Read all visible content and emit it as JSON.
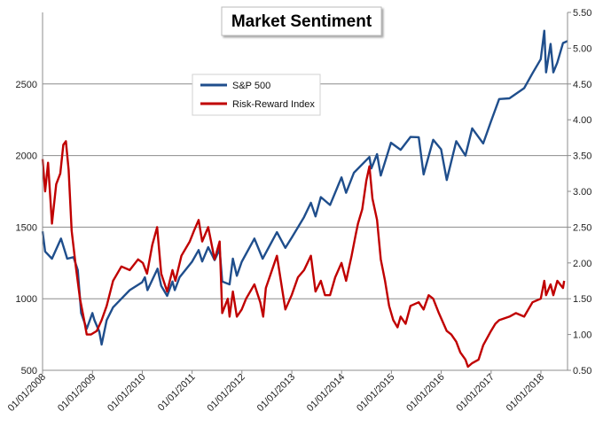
{
  "chart_data": {
    "type": "line",
    "title": "Market Sentiment",
    "legend_position": "top-left",
    "grid": "horizontal",
    "x_tick_labels": [
      "01/01/2008",
      "01/01/2009",
      "01/01/2010",
      "01/01/2011",
      "01/01/2012",
      "01/01/2013",
      "01/01/2014",
      "01/01/2015",
      "01/01/2016",
      "01/01/2017",
      "01/01/2018"
    ],
    "x_range": [
      "2008-01-01",
      "2018-07-15"
    ],
    "y_left": {
      "ylim": [
        500,
        3000
      ],
      "ticks": [
        "500",
        "1000",
        "1500",
        "2000",
        "2500"
      ],
      "tick_values": [
        500,
        1000,
        1500,
        2000,
        2500
      ]
    },
    "y_right": {
      "ylim": [
        0.5,
        5.5
      ],
      "ticks": [
        "0.50",
        "1.00",
        "1.50",
        "2.00",
        "2.50",
        "3.00",
        "3.50",
        "4.00",
        "4.50",
        "5.00",
        "5.50"
      ],
      "tick_values": [
        0.5,
        1.0,
        1.5,
        2.0,
        2.5,
        3.0,
        3.5,
        4.0,
        4.5,
        5.0,
        5.5
      ]
    },
    "series": [
      {
        "name": "S&P 500",
        "axis": "left",
        "color": "#1f4e8c",
        "points": [
          [
            "2008-01-01",
            1470
          ],
          [
            "2008-01-20",
            1330
          ],
          [
            "2008-03-10",
            1280
          ],
          [
            "2008-05-15",
            1420
          ],
          [
            "2008-06-30",
            1280
          ],
          [
            "2008-08-15",
            1290
          ],
          [
            "2008-09-15",
            1200
          ],
          [
            "2008-10-10",
            900
          ],
          [
            "2008-11-20",
            790
          ],
          [
            "2008-12-31",
            900
          ],
          [
            "2009-01-15",
            850
          ],
          [
            "2009-02-20",
            770
          ],
          [
            "2009-03-09",
            680
          ],
          [
            "2009-04-15",
            850
          ],
          [
            "2009-06-01",
            940
          ],
          [
            "2009-08-01",
            1000
          ],
          [
            "2009-10-01",
            1060
          ],
          [
            "2009-12-31",
            1115
          ],
          [
            "2010-01-20",
            1150
          ],
          [
            "2010-02-08",
            1060
          ],
          [
            "2010-04-23",
            1210
          ],
          [
            "2010-05-20",
            1090
          ],
          [
            "2010-07-02",
            1020
          ],
          [
            "2010-08-10",
            1120
          ],
          [
            "2010-08-27",
            1060
          ],
          [
            "2010-10-01",
            1150
          ],
          [
            "2010-12-31",
            1258
          ],
          [
            "2011-02-18",
            1340
          ],
          [
            "2011-03-16",
            1260
          ],
          [
            "2011-04-29",
            1360
          ],
          [
            "2011-06-15",
            1270
          ],
          [
            "2011-07-22",
            1345
          ],
          [
            "2011-08-10",
            1120
          ],
          [
            "2011-10-03",
            1100
          ],
          [
            "2011-10-27",
            1280
          ],
          [
            "2011-11-25",
            1160
          ],
          [
            "2011-12-31",
            1258
          ],
          [
            "2012-04-02",
            1420
          ],
          [
            "2012-06-01",
            1280
          ],
          [
            "2012-09-14",
            1465
          ],
          [
            "2012-11-15",
            1355
          ],
          [
            "2012-12-31",
            1426
          ],
          [
            "2013-03-31",
            1569
          ],
          [
            "2013-05-21",
            1670
          ],
          [
            "2013-06-24",
            1575
          ],
          [
            "2013-08-02",
            1710
          ],
          [
            "2013-10-08",
            1655
          ],
          [
            "2013-12-31",
            1848
          ],
          [
            "2014-02-03",
            1740
          ],
          [
            "2014-04-01",
            1880
          ],
          [
            "2014-07-24",
            1990
          ],
          [
            "2014-08-07",
            1910
          ],
          [
            "2014-09-18",
            2010
          ],
          [
            "2014-10-15",
            1860
          ],
          [
            "2014-12-29",
            2090
          ],
          [
            "2015-03-10",
            2040
          ],
          [
            "2015-05-21",
            2130
          ],
          [
            "2015-07-20",
            2128
          ],
          [
            "2015-08-25",
            1868
          ],
          [
            "2015-11-03",
            2110
          ],
          [
            "2015-12-31",
            2044
          ],
          [
            "2016-02-11",
            1829
          ],
          [
            "2016-04-20",
            2100
          ],
          [
            "2016-06-27",
            2000
          ],
          [
            "2016-08-15",
            2190
          ],
          [
            "2016-11-04",
            2085
          ],
          [
            "2016-12-31",
            2239
          ],
          [
            "2017-03-01",
            2395
          ],
          [
            "2017-05-15",
            2400
          ],
          [
            "2017-08-31",
            2471
          ],
          [
            "2017-10-31",
            2575
          ],
          [
            "2017-12-31",
            2673
          ],
          [
            "2018-01-26",
            2872
          ],
          [
            "2018-02-08",
            2581
          ],
          [
            "2018-03-13",
            2780
          ],
          [
            "2018-04-02",
            2581
          ],
          [
            "2018-05-01",
            2650
          ],
          [
            "2018-06-12",
            2786
          ],
          [
            "2018-07-15",
            2800
          ]
        ]
      },
      {
        "name": "Risk-Reward Index",
        "axis": "right",
        "color": "#c00000",
        "points": [
          [
            "2008-01-01",
            3.45
          ],
          [
            "2008-01-20",
            3.0
          ],
          [
            "2008-02-10",
            3.4
          ],
          [
            "2008-03-10",
            2.55
          ],
          [
            "2008-04-10",
            3.1
          ],
          [
            "2008-05-10",
            3.25
          ],
          [
            "2008-06-01",
            3.65
          ],
          [
            "2008-06-20",
            3.7
          ],
          [
            "2008-07-10",
            3.3
          ],
          [
            "2008-08-01",
            2.45
          ],
          [
            "2008-09-01",
            1.95
          ],
          [
            "2008-10-01",
            1.5
          ],
          [
            "2008-11-01",
            1.2
          ],
          [
            "2008-11-20",
            1.0
          ],
          [
            "2008-12-20",
            1.0
          ],
          [
            "2009-02-01",
            1.05
          ],
          [
            "2009-03-09",
            1.2
          ],
          [
            "2009-04-15",
            1.4
          ],
          [
            "2009-06-01",
            1.75
          ],
          [
            "2009-08-01",
            1.95
          ],
          [
            "2009-10-01",
            1.9
          ],
          [
            "2009-12-01",
            2.05
          ],
          [
            "2010-01-05",
            2.0
          ],
          [
            "2010-02-05",
            1.85
          ],
          [
            "2010-03-15",
            2.25
          ],
          [
            "2010-04-20",
            2.5
          ],
          [
            "2010-05-20",
            1.85
          ],
          [
            "2010-07-02",
            1.6
          ],
          [
            "2010-08-10",
            1.9
          ],
          [
            "2010-09-01",
            1.75
          ],
          [
            "2010-10-15",
            2.1
          ],
          [
            "2010-12-15",
            2.3
          ],
          [
            "2011-01-15",
            2.45
          ],
          [
            "2011-02-18",
            2.6
          ],
          [
            "2011-03-16",
            2.3
          ],
          [
            "2011-04-29",
            2.5
          ],
          [
            "2011-06-15",
            2.05
          ],
          [
            "2011-07-22",
            2.3
          ],
          [
            "2011-08-10",
            1.3
          ],
          [
            "2011-09-20",
            1.5
          ],
          [
            "2011-10-03",
            1.25
          ],
          [
            "2011-10-27",
            1.6
          ],
          [
            "2011-11-25",
            1.25
          ],
          [
            "2011-12-31",
            1.35
          ],
          [
            "2012-02-01",
            1.5
          ],
          [
            "2012-04-02",
            1.7
          ],
          [
            "2012-05-15",
            1.45
          ],
          [
            "2012-06-05",
            1.25
          ],
          [
            "2012-06-25",
            1.65
          ],
          [
            "2012-09-14",
            2.1
          ],
          [
            "2012-10-25",
            1.6
          ],
          [
            "2012-11-15",
            1.35
          ],
          [
            "2012-12-31",
            1.55
          ],
          [
            "2013-02-15",
            1.8
          ],
          [
            "2013-04-01",
            1.9
          ],
          [
            "2013-05-21",
            2.1
          ],
          [
            "2013-06-24",
            1.6
          ],
          [
            "2013-08-02",
            1.75
          ],
          [
            "2013-09-01",
            1.55
          ],
          [
            "2013-10-08",
            1.55
          ],
          [
            "2013-11-15",
            1.8
          ],
          [
            "2013-12-31",
            2.0
          ],
          [
            "2014-02-03",
            1.75
          ],
          [
            "2014-03-15",
            2.1
          ],
          [
            "2014-04-15",
            2.4
          ],
          [
            "2014-05-01",
            2.55
          ],
          [
            "2014-06-01",
            2.75
          ],
          [
            "2014-07-01",
            3.15
          ],
          [
            "2014-07-24",
            3.35
          ],
          [
            "2014-08-15",
            2.9
          ],
          [
            "2014-09-18",
            2.6
          ],
          [
            "2014-10-15",
            2.05
          ],
          [
            "2014-11-15",
            1.75
          ],
          [
            "2014-12-15",
            1.4
          ],
          [
            "2015-01-15",
            1.2
          ],
          [
            "2015-02-15",
            1.1
          ],
          [
            "2015-03-10",
            1.25
          ],
          [
            "2015-04-15",
            1.15
          ],
          [
            "2015-05-21",
            1.4
          ],
          [
            "2015-07-20",
            1.45
          ],
          [
            "2015-08-25",
            1.35
          ],
          [
            "2015-10-01",
            1.55
          ],
          [
            "2015-11-03",
            1.5
          ],
          [
            "2015-12-15",
            1.3
          ],
          [
            "2016-02-11",
            1.05
          ],
          [
            "2016-03-15",
            1.0
          ],
          [
            "2016-04-20",
            0.9
          ],
          [
            "2016-05-20",
            0.75
          ],
          [
            "2016-06-27",
            0.65
          ],
          [
            "2016-07-15",
            0.55
          ],
          [
            "2016-08-15",
            0.6
          ],
          [
            "2016-10-01",
            0.65
          ],
          [
            "2016-11-04",
            0.85
          ],
          [
            "2016-12-31",
            1.05
          ],
          [
            "2017-02-01",
            1.15
          ],
          [
            "2017-03-01",
            1.2
          ],
          [
            "2017-05-15",
            1.25
          ],
          [
            "2017-07-01",
            1.3
          ],
          [
            "2017-08-31",
            1.25
          ],
          [
            "2017-10-31",
            1.45
          ],
          [
            "2017-12-31",
            1.5
          ],
          [
            "2018-01-26",
            1.75
          ],
          [
            "2018-02-08",
            1.55
          ],
          [
            "2018-03-13",
            1.7
          ],
          [
            "2018-04-02",
            1.55
          ],
          [
            "2018-05-01",
            1.75
          ],
          [
            "2018-06-12",
            1.65
          ],
          [
            "2018-06-20",
            1.75
          ]
        ]
      }
    ]
  }
}
